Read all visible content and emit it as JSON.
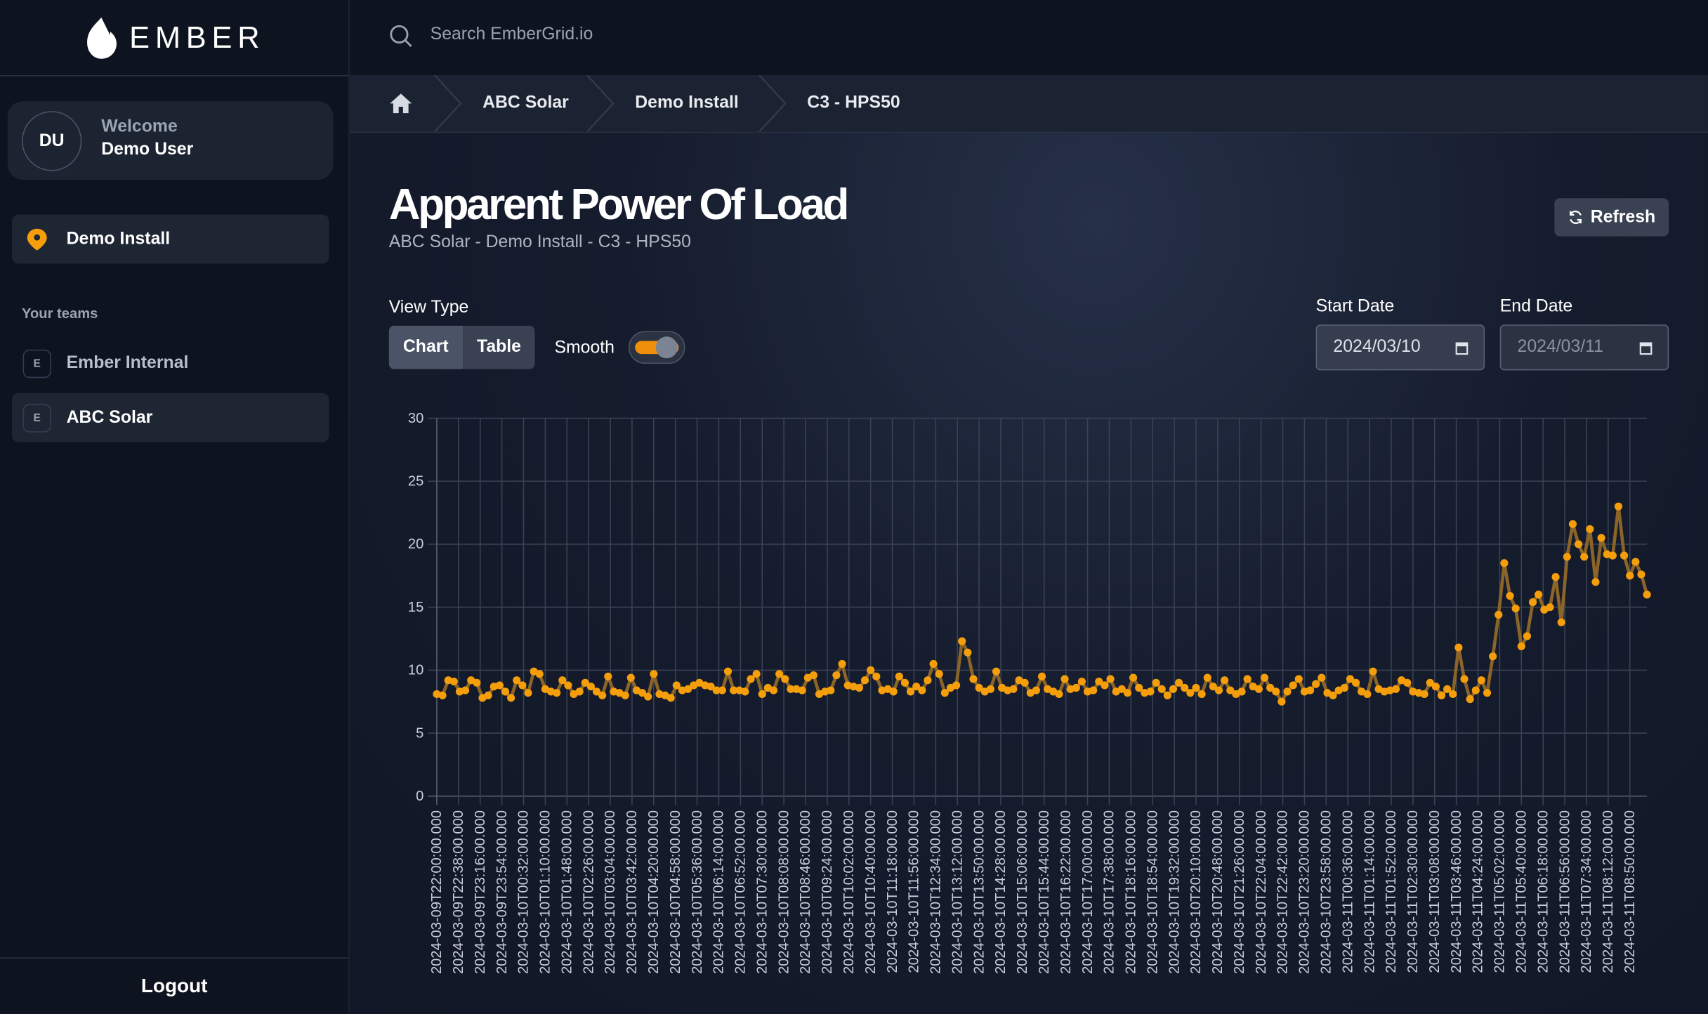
{
  "brand": {
    "name": "EMBER"
  },
  "user": {
    "initials": "DU",
    "greeting": "Welcome",
    "name": "Demo User"
  },
  "sidebar": {
    "install": "Demo Install",
    "teams_heading": "Your teams",
    "teams": [
      {
        "badge": "E",
        "label": "Ember Internal"
      },
      {
        "badge": "E",
        "label": "ABC Solar",
        "active": true
      }
    ],
    "logout": "Logout"
  },
  "search": {
    "placeholder": "Search EmberGrid.io"
  },
  "breadcrumb": [
    "ABC Solar",
    "Demo Install",
    "C3 - HPS50"
  ],
  "page": {
    "title": "Apparent Power Of Load",
    "subtitle": "ABC Solar - Demo Install - C3 - HPS50",
    "refresh": "Refresh"
  },
  "controls": {
    "view_type_label": "View Type",
    "view_options": [
      "Chart",
      "Table"
    ],
    "view_selected": "Chart",
    "smooth_label": "Smooth",
    "smooth_on": true,
    "start_label": "Start Date",
    "start_value": "2024/03/10",
    "end_label": "End Date",
    "end_value": "2024/03/11"
  },
  "colors": {
    "accent": "#f59e0b",
    "line": "#8a6428",
    "bg": "#111726"
  },
  "chart_data": {
    "type": "line",
    "ylim": [
      0,
      30
    ],
    "yticks": [
      0,
      5,
      10,
      15,
      20,
      25,
      30
    ],
    "grid": true,
    "xticks": [
      "2024-03-09T22:00:00.000",
      "2024-03-09T22:38:00.000",
      "2024-03-09T23:16:00.000",
      "2024-03-09T23:54:00.000",
      "2024-03-10T00:32:00.000",
      "2024-03-10T01:10:00.000",
      "2024-03-10T01:48:00.000",
      "2024-03-10T02:26:00.000",
      "2024-03-10T03:04:00.000",
      "2024-03-10T03:42:00.000",
      "2024-03-10T04:20:00.000",
      "2024-03-10T04:58:00.000",
      "2024-03-10T05:36:00.000",
      "2024-03-10T06:14:00.000",
      "2024-03-10T06:52:00.000",
      "2024-03-10T07:30:00.000",
      "2024-03-10T08:08:00.000",
      "2024-03-10T08:46:00.000",
      "2024-03-10T09:24:00.000",
      "2024-03-10T10:02:00.000",
      "2024-03-10T10:40:00.000",
      "2024-03-10T11:18:00.000",
      "2024-03-10T11:56:00.000",
      "2024-03-10T12:34:00.000",
      "2024-03-10T13:12:00.000",
      "2024-03-10T13:50:00.000",
      "2024-03-10T14:28:00.000",
      "2024-03-10T15:06:00.000",
      "2024-03-10T15:44:00.000",
      "2024-03-10T16:22:00.000",
      "2024-03-10T17:00:00.000",
      "2024-03-10T17:38:00.000",
      "2024-03-10T18:16:00.000",
      "2024-03-10T18:54:00.000",
      "2024-03-10T19:32:00.000",
      "2024-03-10T20:10:00.000",
      "2024-03-10T20:48:00.000",
      "2024-03-10T21:26:00.000",
      "2024-03-10T22:04:00.000",
      "2024-03-10T22:42:00.000",
      "2024-03-10T23:20:00.000",
      "2024-03-10T23:58:00.000",
      "2024-03-11T00:36:00.000",
      "2024-03-11T01:14:00.000",
      "2024-03-11T01:52:00.000",
      "2024-03-11T02:30:00.000",
      "2024-03-11T03:08:00.000",
      "2024-03-11T03:46:00.000",
      "2024-03-11T04:24:00.000",
      "2024-03-11T05:02:00.000",
      "2024-03-11T05:40:00.000",
      "2024-03-11T06:18:00.000",
      "2024-03-11T06:56:00.000",
      "2024-03-11T07:34:00.000",
      "2024-03-11T08:12:00.000",
      "2024-03-11T08:50:00.000"
    ],
    "values": [
      8.1,
      8.0,
      9.2,
      9.1,
      8.3,
      8.4,
      9.2,
      9.0,
      7.8,
      8.0,
      8.7,
      8.8,
      8.3,
      7.8,
      9.2,
      8.8,
      8.2,
      9.9,
      9.7,
      8.5,
      8.3,
      8.2,
      9.2,
      8.8,
      8.1,
      8.3,
      9.0,
      8.7,
      8.3,
      8.0,
      9.5,
      8.3,
      8.2,
      8.0,
      9.4,
      8.4,
      8.2,
      7.9,
      9.7,
      8.1,
      8.0,
      7.8,
      8.8,
      8.4,
      8.5,
      8.8,
      9.0,
      8.8,
      8.7,
      8.4,
      8.4,
      9.9,
      8.4,
      8.4,
      8.3,
      9.3,
      9.7,
      8.1,
      8.6,
      8.4,
      9.7,
      9.3,
      8.5,
      8.5,
      8.4,
      9.4,
      9.6,
      8.1,
      8.3,
      8.4,
      9.6,
      10.5,
      8.8,
      8.7,
      8.6,
      9.2,
      10.0,
      9.5,
      8.4,
      8.5,
      8.3,
      9.5,
      9.0,
      8.3,
      8.7,
      8.4,
      9.2,
      10.5,
      9.7,
      8.2,
      8.6,
      8.8,
      12.3,
      11.4,
      9.3,
      8.6,
      8.3,
      8.5,
      9.9,
      8.6,
      8.4,
      8.5,
      9.2,
      9.0,
      8.2,
      8.4,
      9.5,
      8.5,
      8.3,
      8.1,
      9.3,
      8.5,
      8.6,
      9.1,
      8.3,
      8.4,
      9.1,
      8.8,
      9.3,
      8.3,
      8.5,
      8.2,
      9.4,
      8.6,
      8.2,
      8.3,
      9.0,
      8.5,
      8.0,
      8.5,
      9.0,
      8.6,
      8.2,
      8.6,
      8.1,
      9.4,
      8.7,
      8.4,
      9.2,
      8.4,
      8.1,
      8.3,
      9.3,
      8.7,
      8.5,
      9.4,
      8.6,
      8.3,
      7.5,
      8.3,
      8.8,
      9.3,
      8.3,
      8.4,
      8.9,
      9.4,
      8.2,
      8.0,
      8.4,
      8.6,
      9.3,
      9.0,
      8.3,
      8.1,
      9.9,
      8.5,
      8.3,
      8.4,
      8.5,
      9.2,
      9.0,
      8.3,
      8.2,
      8.1,
      9.0,
      8.7,
      8.0,
      8.5,
      8.1,
      11.8,
      9.3,
      7.7,
      8.4,
      9.2,
      8.2,
      11.1,
      14.4,
      18.5,
      15.9,
      14.9,
      11.9,
      12.7,
      15.4,
      16.0,
      14.8,
      15.0,
      17.4,
      13.8,
      19.0,
      21.6,
      20.0,
      19.0,
      21.2,
      17.0,
      20.5,
      19.2,
      19.1,
      23.0,
      19.1,
      17.5,
      18.6,
      17.6,
      16.0
    ]
  }
}
